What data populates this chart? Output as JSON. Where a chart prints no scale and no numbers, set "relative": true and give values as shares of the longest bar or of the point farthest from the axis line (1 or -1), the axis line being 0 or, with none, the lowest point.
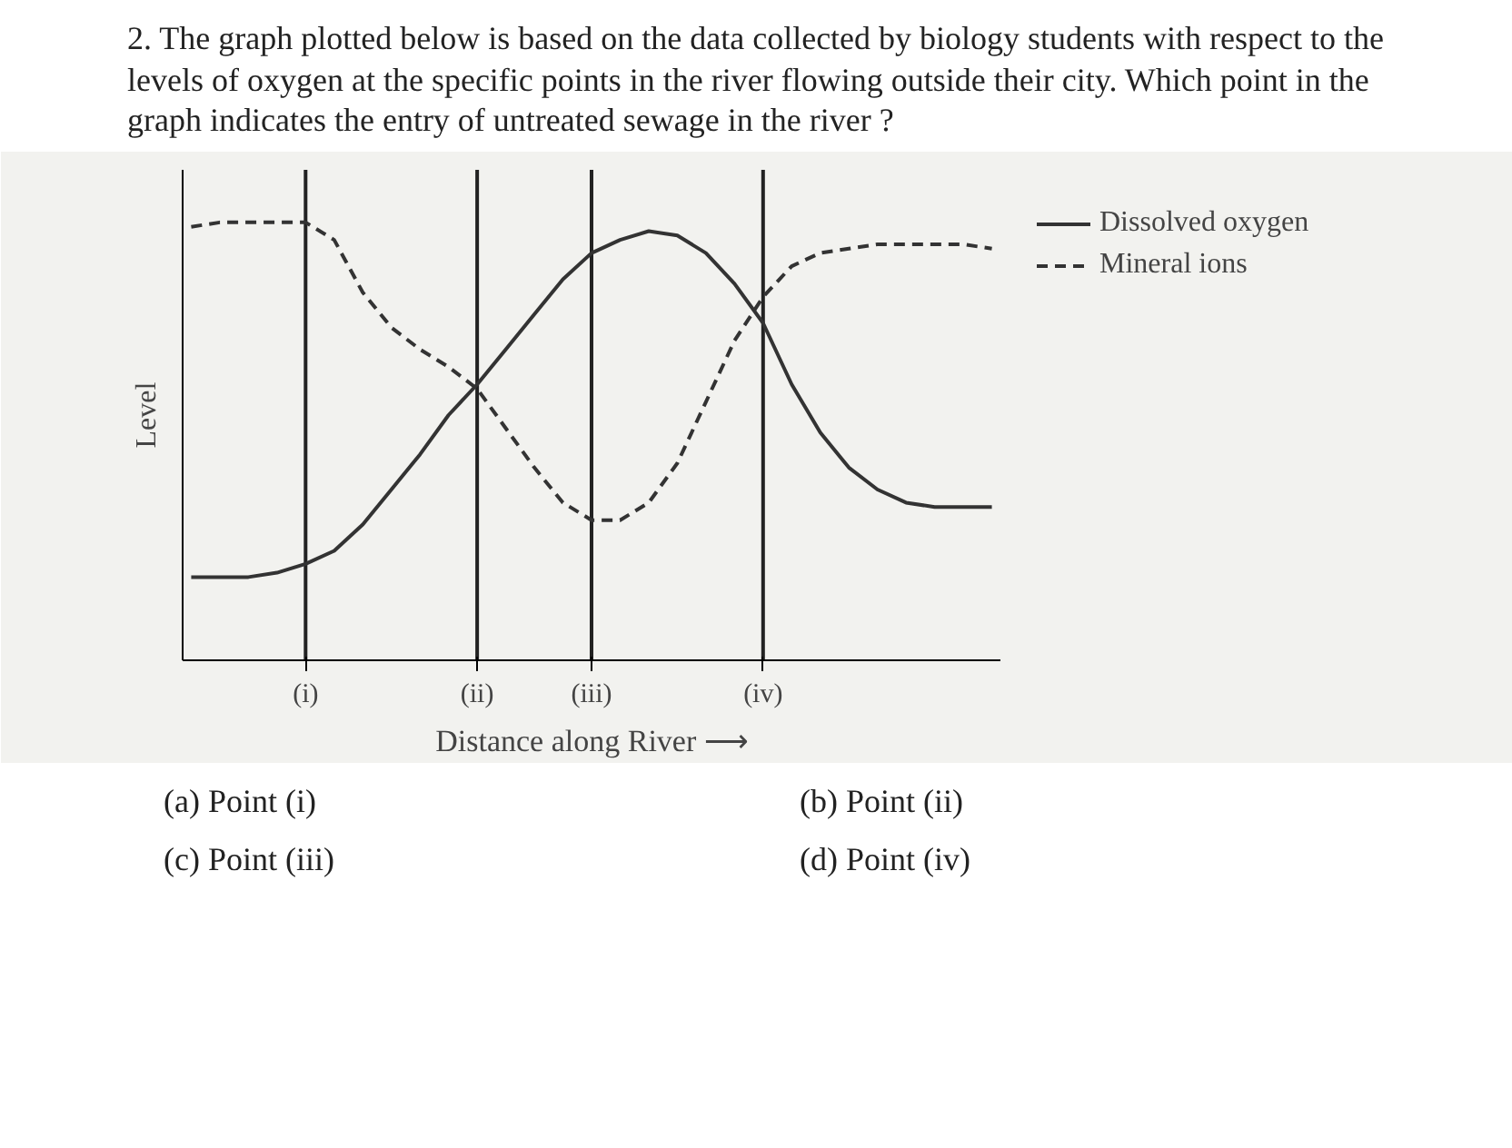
{
  "chart_data": {
    "type": "line",
    "title": "2. The graph plotted below is based on the data collected by biology students with respect to the levels of oxygen at the specific points in the river flowing outside their city. Which point in the graph indicates the entry of untreated sewage in the river ?",
    "xlabel": "Distance along River ⟶",
    "ylabel": "Level",
    "relative": true,
    "tick_labels": "x",
    "grid": false,
    "legend": "right",
    "categories": [
      null,
      null,
      null,
      null,
      "(i)",
      null,
      null,
      null,
      null,
      null,
      "(ii)",
      null,
      null,
      null,
      "(iii)",
      null,
      null,
      null,
      null,
      null,
      "(iv)",
      null,
      null,
      null,
      null,
      null,
      null,
      null,
      null
    ],
    "series": [
      {
        "name": "Dissolved oxygen",
        "color": "#333333",
        "line_style": "solid",
        "values": [
          0.19,
          0.19,
          0.19,
          0.2,
          0.22,
          0.25,
          0.31,
          0.39,
          0.47,
          0.56,
          0.63,
          0.71,
          0.79,
          0.87,
          0.93,
          0.96,
          0.98,
          0.97,
          0.93,
          0.86,
          0.77,
          0.63,
          0.52,
          0.44,
          0.39,
          0.36,
          0.35,
          0.35,
          0.35
        ]
      },
      {
        "name": "Mineral ions",
        "color": "#333333",
        "line_style": "dashed",
        "values": [
          0.99,
          1.0,
          1.0,
          1.0,
          1.0,
          0.96,
          0.84,
          0.76,
          0.71,
          0.67,
          0.62,
          0.53,
          0.44,
          0.36,
          0.32,
          0.32,
          0.36,
          0.45,
          0.59,
          0.73,
          0.83,
          0.9,
          0.93,
          0.94,
          0.95,
          0.95,
          0.95,
          0.95,
          0.94
        ]
      }
    ],
    "ref_lines": [
      {
        "axis": "x",
        "value": "(i)"
      },
      {
        "axis": "x",
        "value": "(ii)"
      },
      {
        "axis": "x",
        "value": "(iii)"
      },
      {
        "axis": "x",
        "value": "(iv)"
      }
    ],
    "annotations": [
      "(a)  Point (i)",
      "(b)  Point (ii)",
      "(c)  Point (iii)",
      "(d)  Point (iv)"
    ]
  }
}
